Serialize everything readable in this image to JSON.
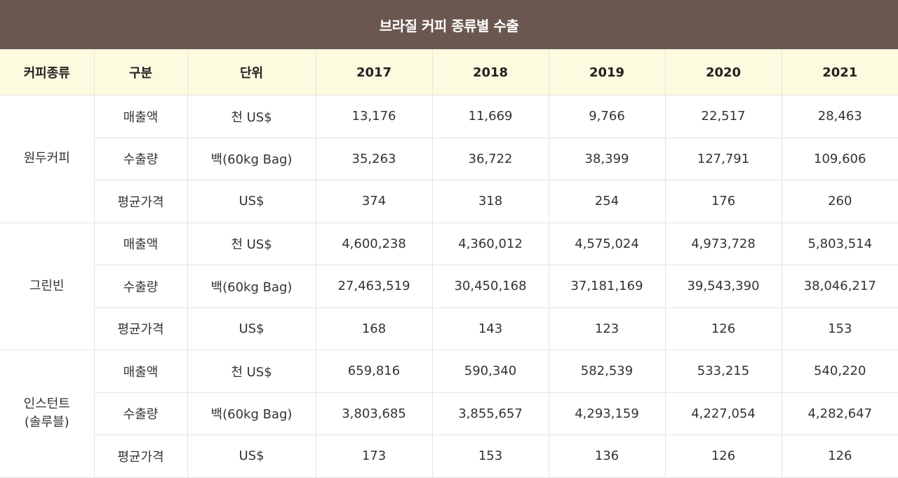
{
  "title": "브라질 커피 종류별 수출",
  "headers": [
    "커피종류",
    "구분",
    "단위",
    "2017",
    "2018",
    "2019",
    "2020",
    "2021"
  ],
  "groups": [
    {
      "type": "원두커피",
      "rows": [
        {
          "category": "매출액",
          "unit": "천 US$",
          "values": [
            "13,176",
            "11,669",
            "9,766",
            "22,517",
            "28,463"
          ]
        },
        {
          "category": "수출량",
          "unit": "백(60kg Bag)",
          "values": [
            "35,263",
            "36,722",
            "38,399",
            "127,791",
            "109,606"
          ]
        },
        {
          "category": "평균가격",
          "unit": "US$",
          "values": [
            "374",
            "318",
            "254",
            "176",
            "260"
          ]
        }
      ]
    },
    {
      "type": "그린빈",
      "rows": [
        {
          "category": "매출액",
          "unit": "천 US$",
          "values": [
            "4,600,238",
            "4,360,012",
            "4,575,024",
            "4,973,728",
            "5,803,514"
          ]
        },
        {
          "category": "수출량",
          "unit": "백(60kg Bag)",
          "values": [
            "27,463,519",
            "30,450,168",
            "37,181,169",
            "39,543,390",
            "38,046,217"
          ]
        },
        {
          "category": "평균가격",
          "unit": "US$",
          "values": [
            "168",
            "143",
            "123",
            "126",
            "153"
          ]
        }
      ]
    },
    {
      "type": "인스턴트\n(솔루블)",
      "type_lines": [
        "인스턴트",
        "(솔루블)"
      ],
      "rows": [
        {
          "category": "매출액",
          "unit": "천 US$",
          "values": [
            "659,816",
            "590,340",
            "582,539",
            "533,215",
            "540,220"
          ]
        },
        {
          "category": "수출량",
          "unit": "백(60kg Bag)",
          "values": [
            "3,803,685",
            "3,855,657",
            "4,293,159",
            "4,227,054",
            "4,282,647"
          ]
        },
        {
          "category": "평균가격",
          "unit": "US$",
          "values": [
            "173",
            "153",
            "136",
            "126",
            "126"
          ]
        }
      ]
    }
  ]
}
